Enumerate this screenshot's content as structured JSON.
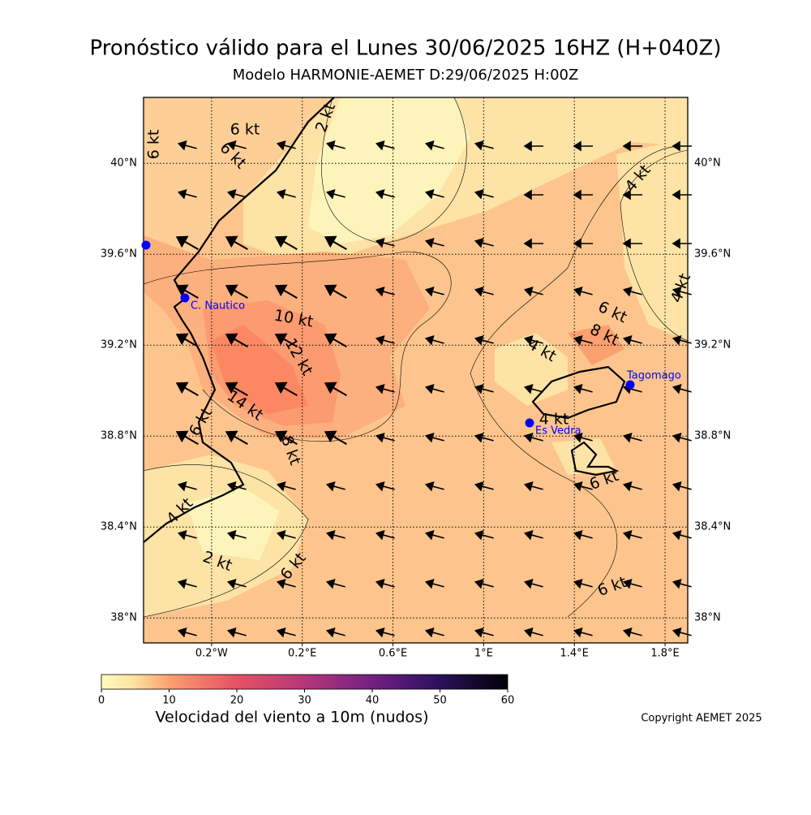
{
  "header": {
    "title": "Pronóstico válido para el Lunes 30/06/2025 16HZ (H+040Z)",
    "subtitle": "Modelo HARMONIE-AEMET D:29/06/2025 H:00Z"
  },
  "map": {
    "xlim": [
      -0.5,
      1.9
    ],
    "ylim": [
      37.89,
      40.29
    ],
    "lon_ticks": [
      {
        "value": -0.2,
        "label": "0.2°W"
      },
      {
        "value": 0.2,
        "label": "0.2°E"
      },
      {
        "value": 0.6,
        "label": "0.6°E"
      },
      {
        "value": 1,
        "label": "1°E"
      },
      {
        "value": 1.4,
        "label": "1.4°E"
      },
      {
        "value": 1.8,
        "label": "1.8°E"
      }
    ],
    "lat_ticks": [
      {
        "value": 38,
        "label": "38°N"
      },
      {
        "value": 38.4,
        "label": "38.4°N"
      },
      {
        "value": 38.8,
        "label": "38.8°N"
      },
      {
        "value": 39.2,
        "label": "39.2°N"
      },
      {
        "value": 39.6,
        "label": "39.6°N"
      },
      {
        "value": 40,
        "label": "40°N"
      }
    ],
    "contour_labels": [
      "6 kt",
      "6 kt",
      "6 kt",
      "2 kt",
      "4 kt",
      "4 kt",
      "10 kt",
      "12 kt",
      "14 kt",
      "6 kt",
      "8 kt",
      "6 kt",
      "8 kt",
      "4 kt",
      "4 kt",
      "6 kt",
      "4 kt",
      "2 kt",
      "6 kt",
      "6 kt"
    ],
    "stations": [
      "C. Nautico",
      "Es Vedra",
      "Tagomago"
    ]
  },
  "colorbar": {
    "label": "Velocidad del viento a 10m (nudos)",
    "lim": [
      0,
      60
    ],
    "ticks": [
      0,
      10,
      20,
      30,
      40,
      50,
      60
    ]
  },
  "footer": {
    "copyright": "Copyright AEMET 2025"
  }
}
